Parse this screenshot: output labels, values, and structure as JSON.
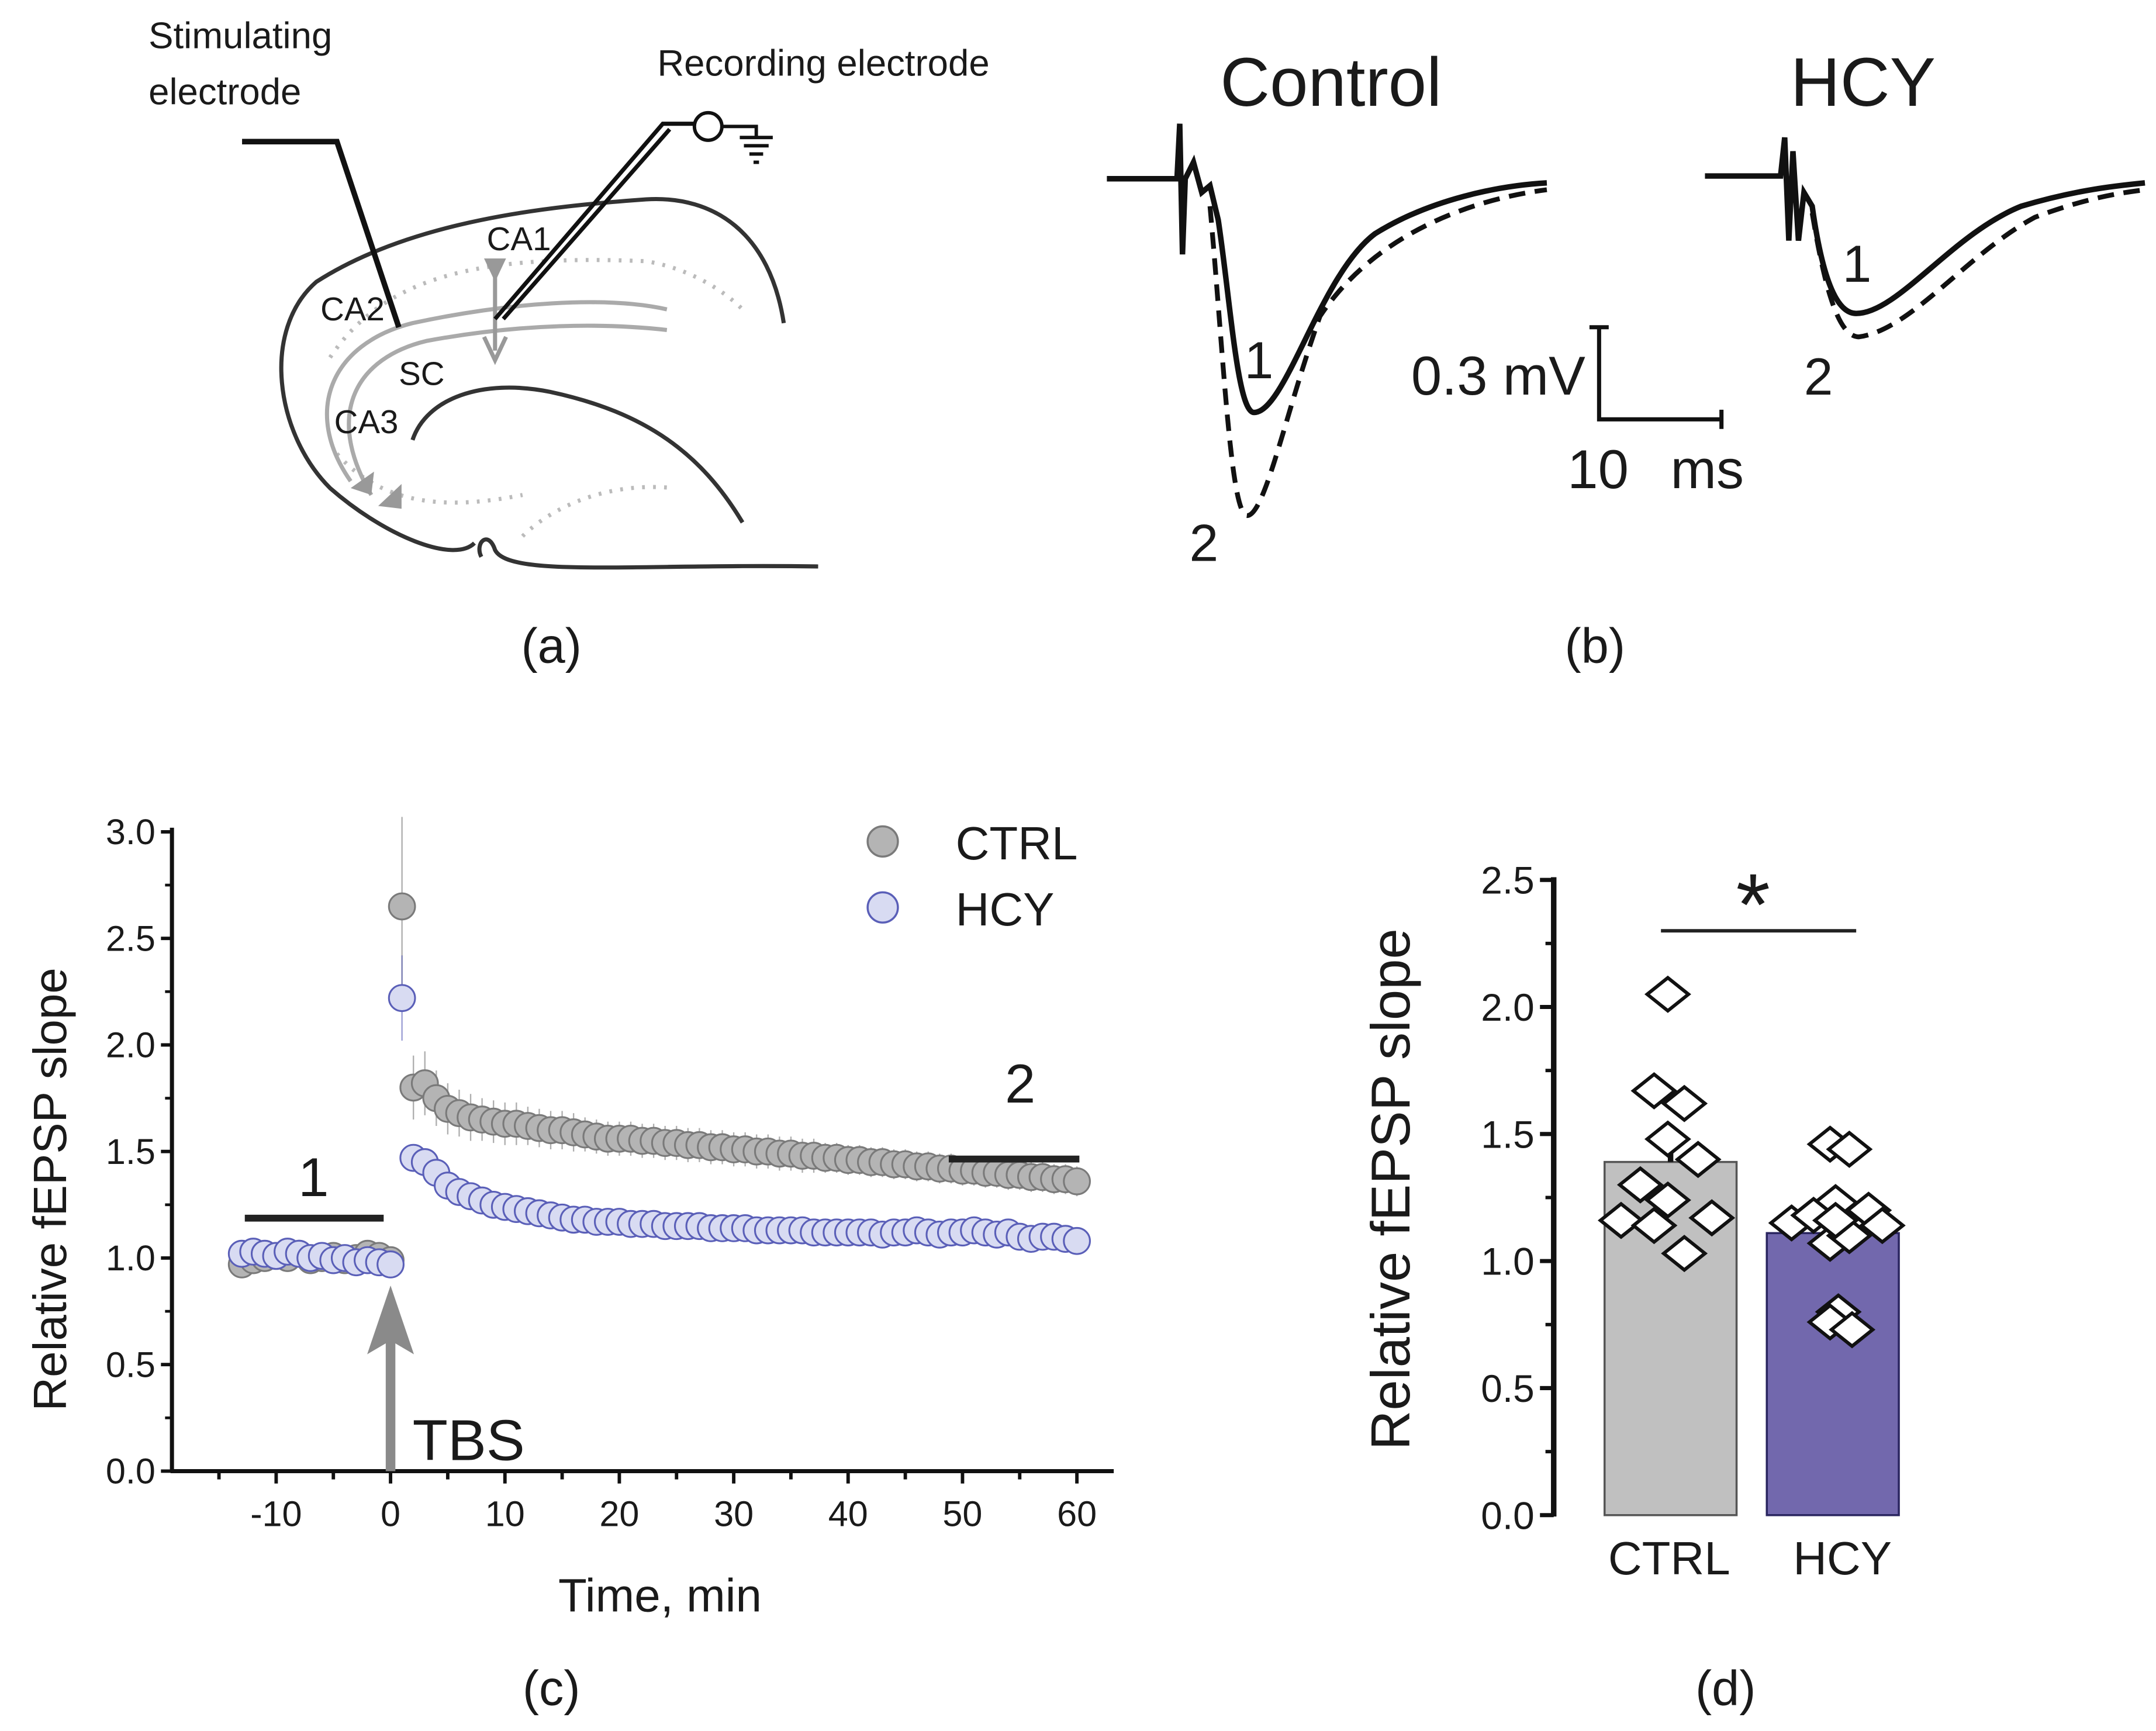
{
  "panel_a": {
    "label": "(a)",
    "stimulating_label_line1": "Stimulating",
    "stimulating_label_line2": "electrode",
    "recording_label": "Recording electrode",
    "regions": {
      "ca1": "CA1",
      "ca2": "CA2",
      "ca3": "CA3",
      "sc": "SC"
    }
  },
  "panel_b": {
    "label": "(b)",
    "control_title": "Control",
    "hcy_title": "HCY",
    "trace1_label": "1",
    "trace2_label": "2",
    "scale_voltage": "0.3 mV",
    "scale_time_value": "10",
    "scale_time_unit": "ms"
  },
  "panel_c_label": "(c)",
  "panel_d_label": "(d)",
  "chart_data": [
    {
      "type": "scatter",
      "xlabel": "Time, min",
      "ylabel": "Relative fEPSP slope",
      "xlim": [
        -15,
        62
      ],
      "ylim": [
        0,
        3.0
      ],
      "xticks": [
        -10,
        0,
        10,
        20,
        30,
        40,
        50,
        60
      ],
      "yticks": [
        "0.0",
        "0.5",
        "1.0",
        "1.5",
        "2.0",
        "2.5",
        "3.0"
      ],
      "legend": "top-right",
      "annotations": {
        "tbs": "TBS",
        "period1": "1",
        "period2": "2"
      },
      "colors": {
        "ctrl_fill": "#b4b4b4",
        "ctrl_edge": "#7a7a7a",
        "hcy_fill": "#d8dbf2",
        "hcy_edge": "#5a5fb8",
        "arrow": "#8a8a8a"
      },
      "series": [
        {
          "name": "CTRL",
          "x": [
            -13,
            -12,
            -11,
            -10,
            -9,
            -8,
            -7,
            -6,
            -5,
            -4,
            -3,
            -2,
            -1,
            0,
            1,
            2,
            3,
            4,
            5,
            6,
            7,
            8,
            9,
            10,
            11,
            12,
            13,
            14,
            15,
            16,
            17,
            18,
            19,
            20,
            21,
            22,
            23,
            24,
            25,
            26,
            27,
            28,
            29,
            30,
            31,
            32,
            33,
            34,
            35,
            36,
            37,
            38,
            39,
            40,
            41,
            42,
            43,
            44,
            45,
            46,
            47,
            48,
            49,
            50,
            51,
            52,
            53,
            54,
            55,
            56,
            57,
            58,
            59,
            60
          ],
          "y": [
            0.97,
            0.99,
            1.0,
            1.01,
            1.0,
            1.02,
            0.99,
            1.0,
            1.01,
            0.99,
            1.0,
            1.02,
            1.01,
            0.99,
            2.65,
            1.8,
            1.82,
            1.75,
            1.7,
            1.68,
            1.66,
            1.65,
            1.64,
            1.63,
            1.63,
            1.62,
            1.61,
            1.6,
            1.6,
            1.59,
            1.58,
            1.57,
            1.56,
            1.56,
            1.56,
            1.55,
            1.55,
            1.54,
            1.54,
            1.53,
            1.53,
            1.52,
            1.52,
            1.51,
            1.51,
            1.5,
            1.5,
            1.49,
            1.49,
            1.48,
            1.48,
            1.47,
            1.47,
            1.46,
            1.46,
            1.45,
            1.45,
            1.44,
            1.44,
            1.43,
            1.43,
            1.42,
            1.42,
            1.41,
            1.41,
            1.4,
            1.4,
            1.39,
            1.39,
            1.38,
            1.38,
            1.37,
            1.37,
            1.36
          ],
          "error": [
            0.04,
            0.04,
            0.04,
            0.04,
            0.04,
            0.04,
            0.04,
            0.04,
            0.04,
            0.04,
            0.04,
            0.04,
            0.04,
            0.04,
            0.42,
            0.15,
            0.15,
            0.13,
            0.12,
            0.11,
            0.11,
            0.1,
            0.1,
            0.1,
            0.1,
            0.09,
            0.09,
            0.09,
            0.09,
            0.09,
            0.08,
            0.08,
            0.08,
            0.08,
            0.08,
            0.08,
            0.08,
            0.08,
            0.08,
            0.08,
            0.08,
            0.08,
            0.08,
            0.08,
            0.08,
            0.08,
            0.08,
            0.08,
            0.08,
            0.08,
            0.08,
            0.07,
            0.07,
            0.07,
            0.07,
            0.07,
            0.07,
            0.07,
            0.07,
            0.07,
            0.07,
            0.07,
            0.07,
            0.07,
            0.07,
            0.07,
            0.07,
            0.07,
            0.07,
            0.07,
            0.07,
            0.07,
            0.07,
            0.07
          ]
        },
        {
          "name": "HCY",
          "x": [
            -13,
            -12,
            -11,
            -10,
            -9,
            -8,
            -7,
            -6,
            -5,
            -4,
            -3,
            -2,
            -1,
            0,
            1,
            2,
            3,
            4,
            5,
            6,
            7,
            8,
            9,
            10,
            11,
            12,
            13,
            14,
            15,
            16,
            17,
            18,
            19,
            20,
            21,
            22,
            23,
            24,
            25,
            26,
            27,
            28,
            29,
            30,
            31,
            32,
            33,
            34,
            35,
            36,
            37,
            38,
            39,
            40,
            41,
            42,
            43,
            44,
            45,
            46,
            47,
            48,
            49,
            50,
            51,
            52,
            53,
            54,
            55,
            56,
            57,
            58,
            59,
            60
          ],
          "y": [
            1.02,
            1.03,
            1.02,
            1.01,
            1.03,
            1.02,
            1.0,
            1.01,
            0.99,
            1.0,
            0.98,
            0.99,
            0.98,
            0.97,
            2.22,
            1.47,
            1.45,
            1.4,
            1.34,
            1.31,
            1.29,
            1.27,
            1.25,
            1.24,
            1.23,
            1.22,
            1.21,
            1.2,
            1.19,
            1.18,
            1.18,
            1.17,
            1.17,
            1.17,
            1.16,
            1.16,
            1.16,
            1.15,
            1.15,
            1.15,
            1.15,
            1.14,
            1.14,
            1.14,
            1.14,
            1.13,
            1.13,
            1.13,
            1.13,
            1.13,
            1.12,
            1.12,
            1.12,
            1.12,
            1.12,
            1.12,
            1.11,
            1.12,
            1.12,
            1.13,
            1.12,
            1.11,
            1.12,
            1.12,
            1.13,
            1.12,
            1.11,
            1.12,
            1.1,
            1.09,
            1.1,
            1.1,
            1.09,
            1.08
          ],
          "error": [
            0.02,
            0.02,
            0.02,
            0.02,
            0.02,
            0.02,
            0.02,
            0.02,
            0.02,
            0.02,
            0.02,
            0.02,
            0.02,
            0.02,
            0.2,
            0.06,
            0.05,
            0.05,
            0.04,
            0.04,
            0.04,
            0.03,
            0.03,
            0.03,
            0.03,
            0.03,
            0.03,
            0.03,
            0.03,
            0.03,
            0.03,
            0.03,
            0.03,
            0.03,
            0.03,
            0.03,
            0.03,
            0.03,
            0.03,
            0.03,
            0.03,
            0.03,
            0.03,
            0.03,
            0.03,
            0.03,
            0.03,
            0.03,
            0.03,
            0.03,
            0.03,
            0.03,
            0.03,
            0.03,
            0.03,
            0.03,
            0.03,
            0.03,
            0.03,
            0.03,
            0.03,
            0.03,
            0.03,
            0.03,
            0.03,
            0.03,
            0.03,
            0.03,
            0.03,
            0.03,
            0.03,
            0.03,
            0.03,
            0.03
          ]
        }
      ]
    },
    {
      "type": "bar",
      "categories": [
        "CTRL",
        "HCY"
      ],
      "values": [
        1.39,
        1.11
      ],
      "errors": [
        0.08,
        0.05
      ],
      "points": [
        [
          2.05,
          1.67,
          1.62,
          1.48,
          1.4,
          1.3,
          1.24,
          1.16,
          1.14,
          1.17,
          1.03
        ],
        [
          1.46,
          1.44,
          1.23,
          1.15,
          1.18,
          1.2,
          1.14,
          1.07,
          1.1,
          1.16,
          0.8,
          0.76,
          0.73
        ]
      ],
      "colors": [
        "#c0c0c0",
        "#7268ad"
      ],
      "ylabel": "Relative fEPSP slope",
      "ylim": [
        0,
        2.5
      ],
      "yticks": [
        "0.0",
        "0.5",
        "1.0",
        "1.5",
        "2.0",
        "2.5"
      ],
      "significance": "*"
    }
  ]
}
